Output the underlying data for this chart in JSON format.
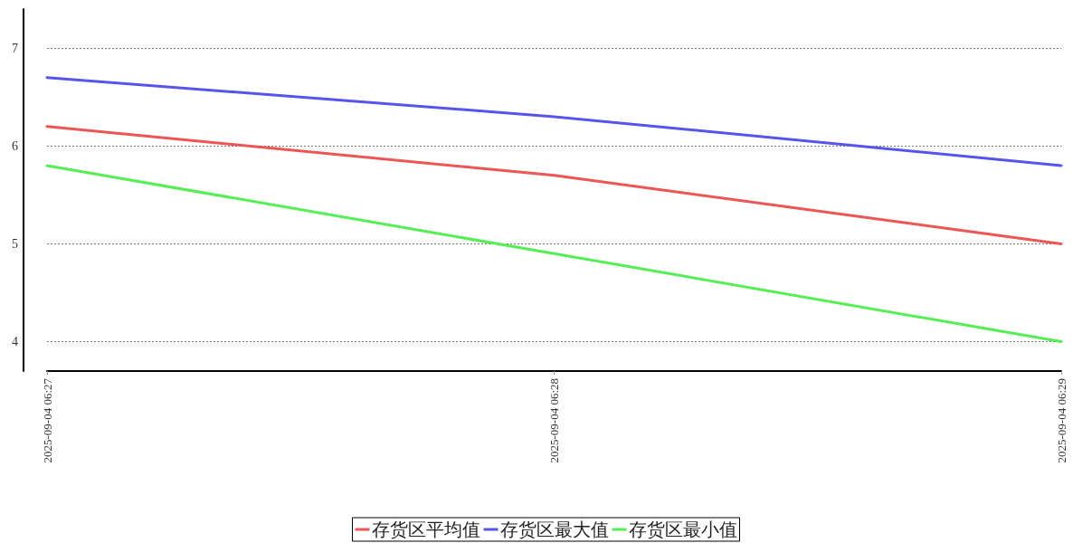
{
  "chart_data": {
    "type": "line",
    "categories": [
      "2025-09-04 06:27",
      "2025-09-04 06:28",
      "2025-09-04 06:29"
    ],
    "series": [
      {
        "name": "存货区平均值",
        "color": "#ee5555",
        "values": [
          6.2,
          5.7,
          5.0
        ]
      },
      {
        "name": "存货区最大值",
        "color": "#5555ee",
        "values": [
          6.7,
          6.3,
          5.8
        ]
      },
      {
        "name": "存货区最小值",
        "color": "#55ee55",
        "values": [
          5.8,
          4.9,
          4.0
        ]
      }
    ],
    "ylim": [
      3.7,
      7.4
    ],
    "yticks": [
      4,
      5,
      6,
      7
    ],
    "grid": "y",
    "legend": "bottom",
    "marker": "none",
    "line_style": "solid"
  }
}
